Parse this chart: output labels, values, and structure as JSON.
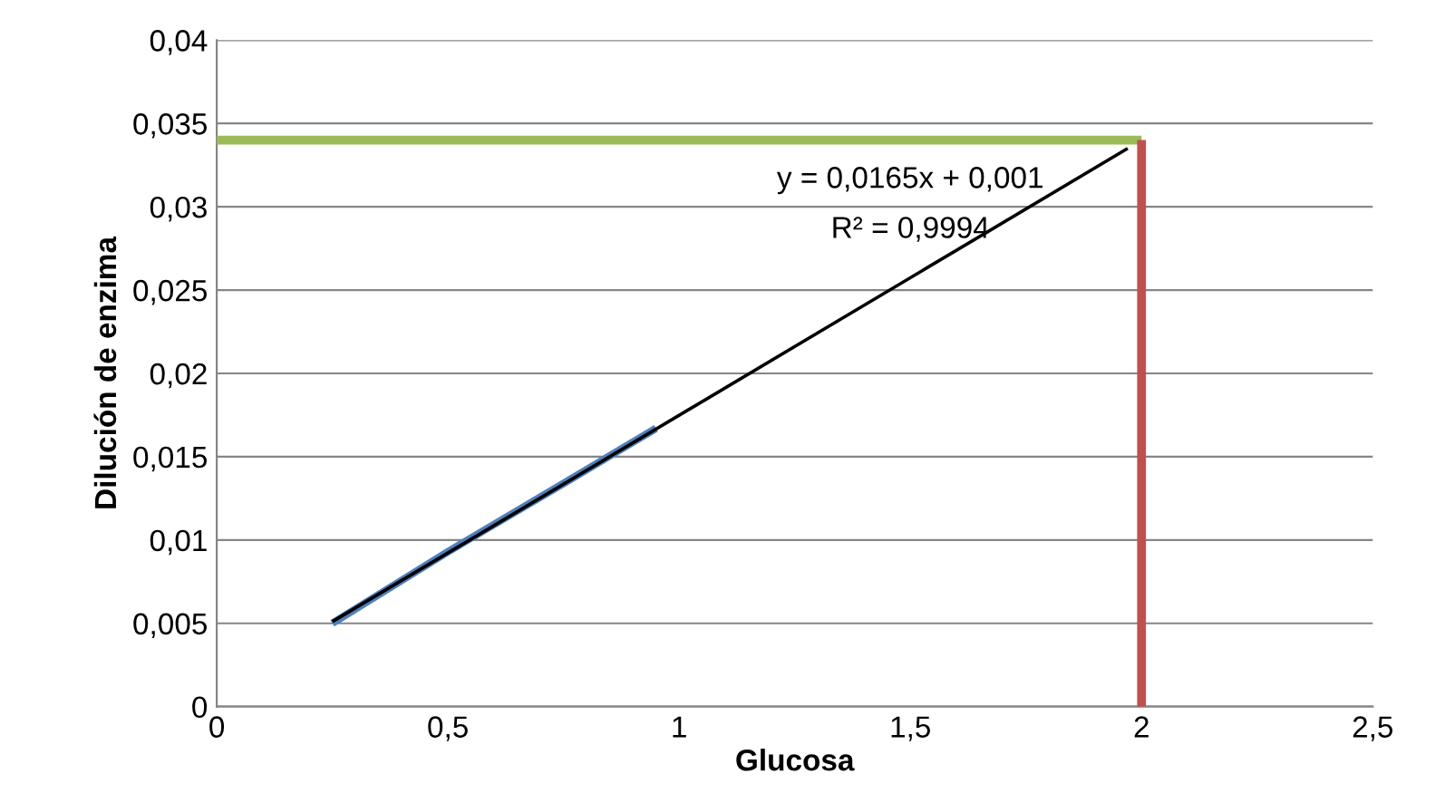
{
  "chart_data": {
    "type": "line",
    "xlabel": "Glucosa",
    "ylabel": "Dilución de enzima",
    "xlim": [
      0,
      2.5
    ],
    "xticks": [
      {
        "value": 0,
        "label": "0"
      },
      {
        "value": 0.5,
        "label": "0,5"
      },
      {
        "value": 1,
        "label": "1"
      },
      {
        "value": 1.5,
        "label": "1,5"
      },
      {
        "value": 2,
        "label": "2"
      },
      {
        "value": 2.5,
        "label": "2,5"
      }
    ],
    "ylim": [
      0,
      0.04
    ],
    "yticks": [
      {
        "value": 0,
        "label": "0"
      },
      {
        "value": 0.005,
        "label": "0,005"
      },
      {
        "value": 0.01,
        "label": "0,01"
      },
      {
        "value": 0.015,
        "label": "0,015"
      },
      {
        "value": 0.02,
        "label": "0,02"
      },
      {
        "value": 0.025,
        "label": "0,025"
      },
      {
        "value": 0.03,
        "label": "0,03"
      },
      {
        "value": 0.035,
        "label": "0,035"
      },
      {
        "value": 0.04,
        "label": "0,04"
      }
    ],
    "grid": "y",
    "legend": false,
    "marker": "none",
    "series": [
      {
        "color": "#4f81bd",
        "x": [
          0.25,
          0.5,
          0.75,
          0.95
        ],
        "values": [
          0.005,
          0.0093,
          0.0134,
          0.0167
        ]
      },
      {
        "color": "#000000",
        "x": [
          0.25,
          1.97
        ],
        "values": [
          0.0051,
          0.0335
        ]
      },
      {
        "color": "#9bbb59",
        "x": [
          0,
          2
        ],
        "values": [
          0.034,
          0.034
        ]
      },
      {
        "color": "#c0504d",
        "x": [
          2,
          2
        ],
        "values": [
          0,
          0.034
        ]
      }
    ],
    "annotations": [
      "y = 0,0165x + 0,001",
      "R² = 0,9994"
    ]
  }
}
